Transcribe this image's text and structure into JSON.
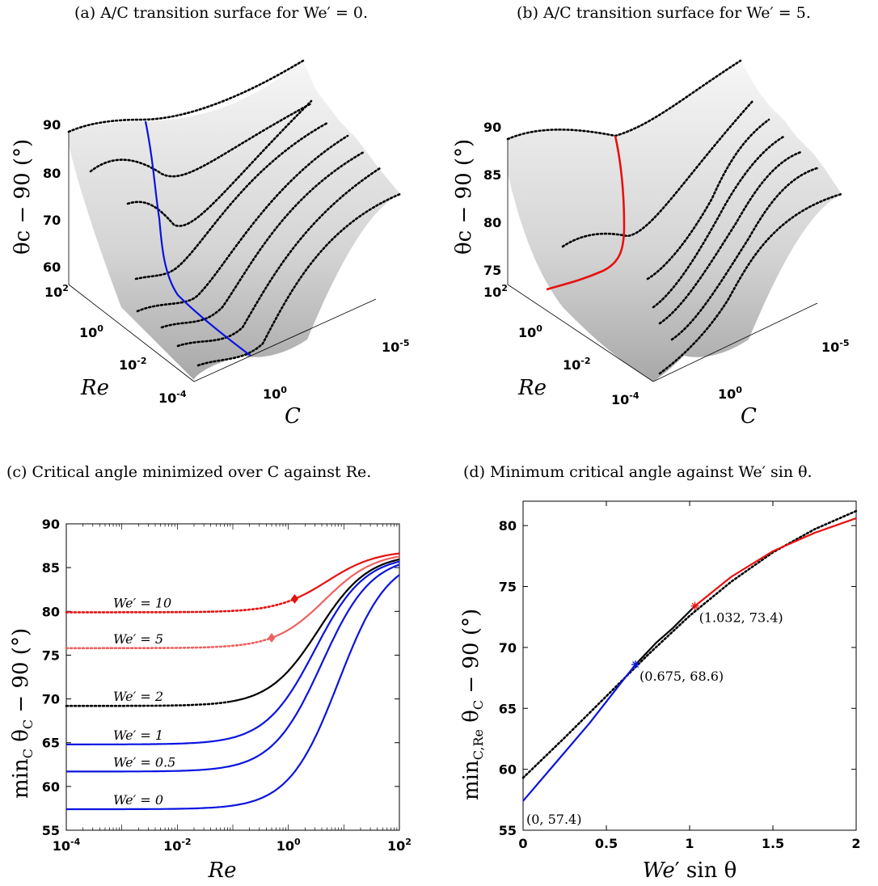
{
  "captions": {
    "a": "(a) A/C transition surface for  We′ = 0.",
    "b": "(b) A/C transition surface for  We′ = 5.",
    "c": "(c) Critical angle minimized over C against Re.",
    "d": "(d) Minimum critical angle against  We′ sin θ."
  },
  "colors": {
    "blue": "#0a14e0",
    "red": "#e81010",
    "lightred": "#f06060",
    "black": "#000000",
    "grid": "#555555"
  },
  "panel_a": {
    "z_ticks": [
      "90",
      "80",
      "70",
      "60"
    ],
    "re_ticks": [
      "10^2",
      "10^0",
      "10^-2",
      "10^-4"
    ],
    "c_ticks": [
      "10^0",
      "10^-5"
    ],
    "ylabel": "θc − 90 (°)",
    "re_label": "Re",
    "c_label": "C"
  },
  "panel_b": {
    "z_ticks": [
      "90",
      "85",
      "80",
      "75"
    ],
    "re_ticks": [
      "10^2",
      "10^0",
      "10^-2",
      "10^-4"
    ],
    "c_ticks": [
      "10^0",
      "10^-5"
    ],
    "ylabel": "θc − 90 (°)",
    "re_label": "Re",
    "c_label": "C"
  },
  "chart_data": [
    {
      "panel": "c",
      "type": "line",
      "xscale": "log",
      "xlabel": "Re",
      "ylabel": "min_C θc − 90 (°)",
      "xlim": [
        0.0001,
        100
      ],
      "ylim": [
        55,
        90
      ],
      "xticks": [
        "10^-4",
        "10^-2",
        "10^0",
        "10^2"
      ],
      "yticks": [
        55,
        60,
        65,
        70,
        75,
        80,
        85,
        90
      ],
      "series": [
        {
          "name": "We′ = 0",
          "color": "blue",
          "plateau": 57.4,
          "end": 86.5,
          "mid": 8.0,
          "dotted_until": null,
          "marker": null
        },
        {
          "name": "We′ = 0.5",
          "color": "blue",
          "plateau": 61.7,
          "end": 86.4,
          "mid": 4.0,
          "dotted_until": null,
          "marker": null
        },
        {
          "name": "We′ = 1",
          "color": "blue",
          "plateau": 64.8,
          "end": 86.4,
          "mid": 3.0,
          "dotted_until": null,
          "marker": null
        },
        {
          "name": "We′ = 2",
          "color": "black",
          "plateau": 69.2,
          "end": 86.6,
          "mid": 3.5,
          "dotted_until": 0.08,
          "marker": null
        },
        {
          "name": "We′ = 5",
          "color": "lightred",
          "plateau": 75.8,
          "end": 86.8,
          "mid": 4.5,
          "dotted_until": 0.5,
          "marker": 0.5
        },
        {
          "name": "We′ = 10",
          "color": "red",
          "plateau": 79.9,
          "end": 87.0,
          "mid": 5.0,
          "dotted_until": 1.3,
          "marker": 1.3
        }
      ]
    },
    {
      "panel": "d",
      "type": "line",
      "xlabel": "We′ sin θ",
      "ylabel": "min_{C,Re} θc − 90 (°)",
      "xlim": [
        0,
        2
      ],
      "ylim": [
        55,
        82
      ],
      "xticks": [
        0,
        0.5,
        1,
        1.5,
        2
      ],
      "yticks": [
        55,
        60,
        65,
        70,
        75,
        80
      ],
      "series": [
        {
          "name": "dotted",
          "style": "dotted",
          "color": "black",
          "x": [
            0,
            0.25,
            0.5,
            0.75,
            1.0,
            1.25,
            1.5,
            1.75,
            2.0
          ],
          "y": [
            59.3,
            62.6,
            66.0,
            69.4,
            72.6,
            75.4,
            77.8,
            79.7,
            81.2
          ]
        },
        {
          "name": "blue",
          "style": "solid",
          "color": "blue",
          "x": [
            0,
            0.2,
            0.4,
            0.6,
            0.675
          ],
          "y": [
            57.4,
            60.6,
            63.8,
            67.3,
            68.6
          ]
        },
        {
          "name": "black",
          "style": "solid",
          "color": "black",
          "x": [
            0.675,
            0.8,
            0.9,
            1.032
          ],
          "y": [
            68.6,
            70.4,
            71.6,
            73.4
          ]
        },
        {
          "name": "red",
          "style": "solid",
          "color": "red",
          "x": [
            1.032,
            1.25,
            1.5,
            1.75,
            2.0
          ],
          "y": [
            73.4,
            75.8,
            77.9,
            79.4,
            80.6
          ]
        }
      ],
      "points": [
        {
          "x": 0,
          "y": 57.4,
          "label": "(0, 57.4)",
          "color": "blue"
        },
        {
          "x": 0.675,
          "y": 68.6,
          "label": "(0.675, 68.6)",
          "color": "blue"
        },
        {
          "x": 1.032,
          "y": 73.4,
          "label": "(1.032, 73.4)",
          "color": "red"
        }
      ]
    }
  ]
}
